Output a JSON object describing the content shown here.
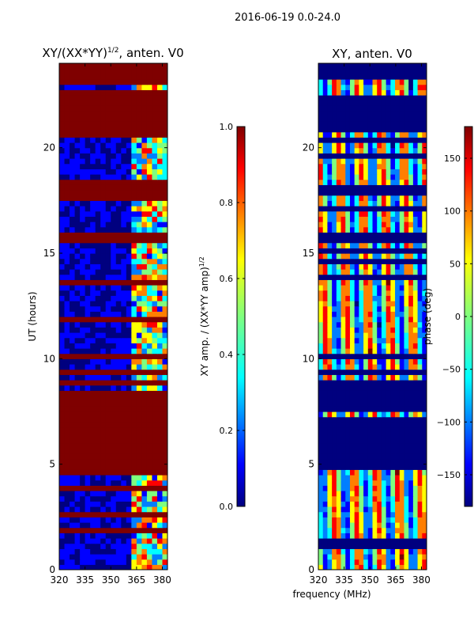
{
  "figure": {
    "suptitle": "2016-06-19 0.0-24.0",
    "xlabel": "frequency (MHz)"
  },
  "colors": {
    "jet": [
      "#00007f",
      "#0000ff",
      "#007fff",
      "#00ffff",
      "#7fff7f",
      "#ffff00",
      "#ff7f00",
      "#ff0000",
      "#7f0000"
    ],
    "dark_red": "#7f0000",
    "dark_blue": "#00007f"
  },
  "chart_data": [
    {
      "type": "heatmap",
      "title_main": "XY/(XX*YY)",
      "title_sup": "1/2",
      "title_tail": ", anten. V0",
      "ylabel": "UT (hours)",
      "xlim": [
        320,
        383
      ],
      "ylim": [
        0,
        24
      ],
      "x_ticks": [
        "320",
        "335",
        "350",
        "365",
        "380"
      ],
      "x_tick_values": [
        320,
        335,
        350,
        365,
        380
      ],
      "y_ticks": [
        "0",
        "5",
        "10",
        "15",
        "20"
      ],
      "y_tick_values": [
        0,
        5,
        10,
        15,
        20
      ],
      "active_freq_range": [
        360,
        381
      ],
      "saturated_hour_ranges": [
        [
          4.3,
          8.5
        ],
        [
          17.5,
          18.0
        ],
        [
          20.3,
          22.3
        ],
        [
          23.1,
          24.0
        ]
      ],
      "colorbar": {
        "label_main": "XY amp. / (XX*YY amp)",
        "label_sup": "1/2",
        "range": [
          0.0,
          1.0
        ],
        "ticks": [
          "0.0",
          "0.2",
          "0.4",
          "0.6",
          "0.8",
          "1.0"
        ],
        "tick_values": [
          0.0,
          0.2,
          0.4,
          0.6,
          0.8,
          1.0
        ]
      }
    },
    {
      "type": "heatmap",
      "title": "XY, anten. V0",
      "xlim": [
        320,
        383
      ],
      "ylim": [
        0,
        24
      ],
      "x_ticks": [
        "320",
        "335",
        "350",
        "365",
        "380"
      ],
      "x_tick_values": [
        320,
        335,
        350,
        365,
        380
      ],
      "y_ticks": [
        "0",
        "5",
        "10",
        "15",
        "20"
      ],
      "y_tick_values": [
        0,
        5,
        10,
        15,
        20
      ],
      "dark_hour_ranges": [
        [
          5.0,
          7.2
        ],
        [
          7.5,
          8.8
        ],
        [
          15.5,
          16.0
        ],
        [
          17.6,
          18.1
        ],
        [
          20.6,
          22.3
        ],
        [
          23.3,
          24.0
        ]
      ],
      "colorbar": {
        "label": "phase (deg)",
        "range": [
          -180,
          180
        ],
        "ticks": [
          "−150",
          "−100",
          "−50",
          "0",
          "50",
          "100",
          "150"
        ],
        "tick_values": [
          -150,
          -100,
          -50,
          0,
          50,
          100,
          150
        ]
      }
    }
  ]
}
